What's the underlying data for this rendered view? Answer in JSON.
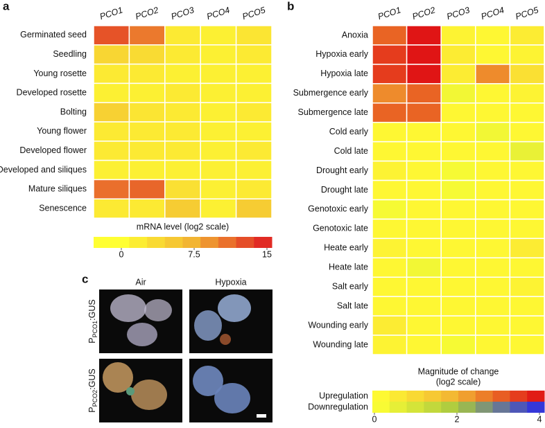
{
  "chart_data": [
    {
      "type": "heatmap",
      "panel_label": "a",
      "columns": [
        "PCO1",
        "PCO2",
        "PCO3",
        "PCO4",
        "PCO5"
      ],
      "rows": [
        "Germinated seed",
        "Seedling",
        "Young rosette",
        "Developed rosette",
        "Bolting",
        "Young flower",
        "Developed flower",
        "Developed and siliques",
        "Mature siliques",
        "Senescence"
      ],
      "values": [
        [
          12.5,
          10.5,
          2,
          1.5,
          2.5
        ],
        [
          4,
          3.5,
          2,
          1.5,
          2
        ],
        [
          2,
          2,
          1.5,
          1.5,
          1.5
        ],
        [
          1.5,
          1.5,
          2,
          1.5,
          1.5
        ],
        [
          4.5,
          2.5,
          2,
          1.5,
          2
        ],
        [
          2,
          2,
          2,
          1.5,
          1.5
        ],
        [
          2,
          2,
          2,
          1.5,
          2
        ],
        [
          1.5,
          1.5,
          1.5,
          1.5,
          1.5
        ],
        [
          11,
          11.5,
          3,
          1.5,
          2
        ],
        [
          2,
          2,
          5,
          1.5,
          5
        ]
      ],
      "colorbar": {
        "title": [
          "mRNA level (log2 scale)"
        ],
        "lim": [
          0,
          15
        ],
        "ticks": [
          0,
          7.5,
          15
        ],
        "colors": [
          "#ffff33",
          "#f2b233",
          "#e02323"
        ]
      }
    },
    {
      "type": "heatmap",
      "panel_label": "b",
      "columns": [
        "PCO1",
        "PCO2",
        "PCO3",
        "PCO4",
        "PCO5"
      ],
      "rows": [
        "Anoxia",
        "Hypoxia early",
        "Hypoxia late",
        "Submergence early",
        "Submergence late",
        "Cold early",
        "Cold late",
        "Drought early",
        "Drought late",
        "Genotoxic early",
        "Genotoxic late",
        "Heate early",
        "Heate late",
        "Salt early",
        "Salt late",
        "Wounding early",
        "Wounding late"
      ],
      "values": [
        [
          3,
          4,
          0.3,
          0.2,
          0.5
        ],
        [
          3.5,
          4,
          0.5,
          0.2,
          0.3
        ],
        [
          3.5,
          4,
          0.5,
          2.5,
          0.8
        ],
        [
          2.5,
          3,
          -0.3,
          0.2,
          0.3
        ],
        [
          3,
          3,
          0.2,
          0.2,
          0.2
        ],
        [
          0.2,
          0.2,
          0.2,
          -0.3,
          0.2
        ],
        [
          0.2,
          0.2,
          0.2,
          0.2,
          -0.5
        ],
        [
          0.3,
          0.2,
          -0.2,
          0.2,
          0.2
        ],
        [
          0.2,
          0.2,
          -0.2,
          0.2,
          0.2
        ],
        [
          -0.2,
          0.2,
          0.2,
          0.2,
          0.2
        ],
        [
          0.2,
          0.2,
          0.2,
          0.2,
          0.2
        ],
        [
          0.3,
          0.2,
          0.2,
          0.2,
          0.5
        ],
        [
          0.2,
          -0.3,
          0.2,
          0.2,
          0.2
        ],
        [
          0.2,
          0.2,
          0.2,
          0.2,
          0.3
        ],
        [
          0.2,
          0.2,
          0.2,
          0.2,
          0.2
        ],
        [
          0.5,
          0.2,
          0.2,
          0.2,
          0.2
        ],
        [
          0.3,
          0.2,
          -0.2,
          0.2,
          0.2
        ]
      ],
      "colorbar": {
        "title": [
          "Magnitude of change",
          "(log2 scale)"
        ],
        "lim": [
          0,
          4
        ],
        "ticks": [
          0,
          2,
          4
        ],
        "colors": [
          "#ffff33",
          "#f2b233",
          "#e01515"
        ],
        "down_colors": [
          "#ffff33",
          "#a8c840",
          "#3030e0"
        ],
        "row_labels": [
          "Upregulation",
          "Downregulation"
        ]
      }
    }
  ],
  "panel_c": {
    "panel_label": "c",
    "columns": [
      "Air",
      "Hypoxia"
    ],
    "rows": [
      {
        "prefix": "P",
        "sub": "PCO1",
        "suffix": ":GUS"
      },
      {
        "prefix": "P",
        "sub": "PCO2",
        "suffix": ":GUS"
      }
    ]
  }
}
